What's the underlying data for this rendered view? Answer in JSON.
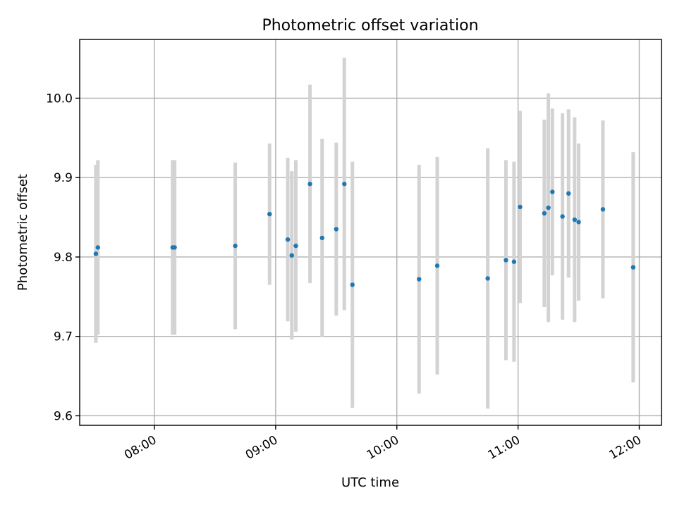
{
  "chart_data": {
    "type": "scatter",
    "title": "Photometric offset variation",
    "xlabel": "UTC time",
    "ylabel": "Photometric offset",
    "xlim": [
      "07:23",
      "12:11"
    ],
    "ylim": [
      9.588,
      10.074
    ],
    "x_ticks": [
      "08:00",
      "09:00",
      "10:00",
      "11:00",
      "12:00"
    ],
    "y_ticks": [
      9.6,
      9.7,
      9.8,
      9.9,
      10.0
    ],
    "y_tick_labels": [
      "9.6",
      "9.7",
      "9.8",
      "9.9",
      "10.0"
    ],
    "grid": true,
    "legend": "none",
    "colors": {
      "points": "#1f77b4",
      "error_bars": "#d3d3d3"
    },
    "points": [
      {
        "x": "07:31",
        "y": 9.804,
        "yerr": 0.112
      },
      {
        "x": "07:32",
        "y": 9.812,
        "yerr": 0.11
      },
      {
        "x": "08:09",
        "y": 9.812,
        "yerr": 0.11
      },
      {
        "x": "08:10",
        "y": 9.812,
        "yerr": 0.11
      },
      {
        "x": "08:40",
        "y": 9.814,
        "yerr": 0.105
      },
      {
        "x": "08:57",
        "y": 9.854,
        "yerr": 0.089
      },
      {
        "x": "09:06",
        "y": 9.822,
        "yerr": 0.103
      },
      {
        "x": "09:08",
        "y": 9.802,
        "yerr": 0.106
      },
      {
        "x": "09:10",
        "y": 9.814,
        "yerr": 0.108
      },
      {
        "x": "09:17",
        "y": 9.892,
        "yerr": 0.125
      },
      {
        "x": "09:23",
        "y": 9.824,
        "yerr": 0.125
      },
      {
        "x": "09:30",
        "y": 9.835,
        "yerr": 0.109
      },
      {
        "x": "09:34",
        "y": 9.892,
        "yerr": 0.159
      },
      {
        "x": "09:38",
        "y": 9.765,
        "yerr": 0.155
      },
      {
        "x": "10:11",
        "y": 9.772,
        "yerr": 0.144
      },
      {
        "x": "10:20",
        "y": 9.789,
        "yerr": 0.137
      },
      {
        "x": "10:45",
        "y": 9.773,
        "yerr": 0.164
      },
      {
        "x": "10:54",
        "y": 9.796,
        "yerr": 0.126
      },
      {
        "x": "10:58",
        "y": 9.794,
        "yerr": 0.126
      },
      {
        "x": "11:01",
        "y": 9.863,
        "yerr": 0.121
      },
      {
        "x": "11:13",
        "y": 9.855,
        "yerr": 0.118
      },
      {
        "x": "11:15",
        "y": 9.862,
        "yerr": 0.144
      },
      {
        "x": "11:17",
        "y": 9.882,
        "yerr": 0.105
      },
      {
        "x": "11:22",
        "y": 9.851,
        "yerr": 0.13
      },
      {
        "x": "11:25",
        "y": 9.88,
        "yerr": 0.106
      },
      {
        "x": "11:28",
        "y": 9.847,
        "yerr": 0.129
      },
      {
        "x": "11:30",
        "y": 9.844,
        "yerr": 0.099
      },
      {
        "x": "11:42",
        "y": 9.86,
        "yerr": 0.112
      },
      {
        "x": "11:57",
        "y": 9.787,
        "yerr": 0.145
      }
    ]
  }
}
